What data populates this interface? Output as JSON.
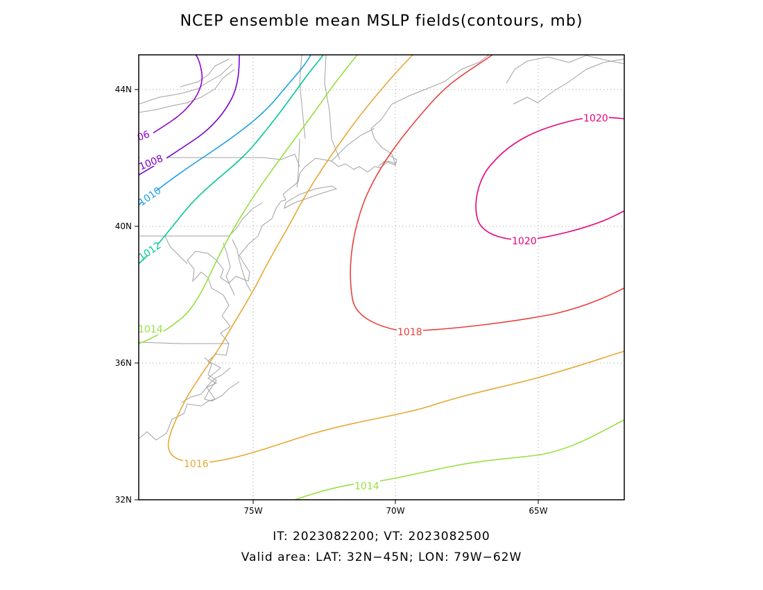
{
  "title": "NCEP ensemble mean MSLP fields(contours, mb)",
  "footer": {
    "line1": "IT: 2023082200; VT: 2023082500",
    "line2": "Valid area: LAT: 32N−45N; LON: 79W−62W"
  },
  "axes": {
    "lat_ticks": [
      "44N",
      "40N",
      "36N",
      "32N"
    ],
    "lon_ticks": [
      "75W",
      "70W",
      "65W"
    ],
    "lat_range": [
      32,
      45
    ],
    "lon_range": [
      -79,
      -62
    ],
    "grid": "dotted"
  },
  "colors": {
    "c1006": "#9400d3",
    "c1008": "#7b00c8",
    "c1010": "#1a9fe6",
    "c1012": "#00c896",
    "c1014": "#96e03c",
    "c1016": "#e6a832",
    "c1018": "#e8403c",
    "c1020": "#e6007e",
    "coast": "#a0a0a0"
  },
  "contour_labels": {
    "l1006": "06",
    "l1008": "1008",
    "l1010": "1010",
    "l1012": "1012",
    "l1014a": "1014",
    "l1014b": "1014",
    "l1016": "1016",
    "l1018": "1018",
    "l1020a": "1020",
    "l1020b": "1020"
  }
}
